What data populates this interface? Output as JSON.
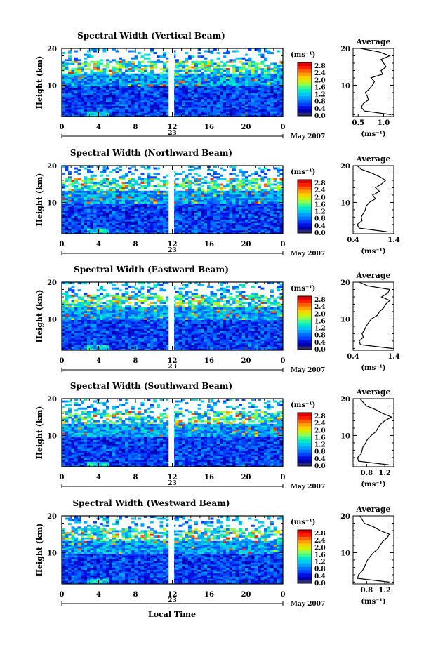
{
  "chart_data": {
    "type": "heatmap",
    "xlabel": "Local Time",
    "date_label": "May 2007",
    "x_ticks": [
      "0",
      "4",
      "8",
      "12",
      "16",
      "20",
      "0"
    ],
    "x_range_hours": [
      0,
      24
    ],
    "day_label": "23",
    "y_ticks": [
      "20",
      "10"
    ],
    "ylabel": "Height (km)",
    "ylim_km": [
      1.5,
      20
    ],
    "data_gap_hours": [
      11.6,
      12.2
    ],
    "colorbar": {
      "unit": "(ms⁻¹)",
      "ticks": [
        "2.8",
        "2.4",
        "2.0",
        "1.6",
        "1.2",
        "0.8",
        "0.4",
        "0.0"
      ],
      "range": [
        0.0,
        3.0
      ],
      "colors": [
        "#2a2a6e",
        "#0000a8",
        "#0010e0",
        "#0040ff",
        "#0070ff",
        "#00a0ff",
        "#00c8f0",
        "#00e8c8",
        "#40f890",
        "#90ff50",
        "#d0f000",
        "#ffd000",
        "#ffa000",
        "#ff6000",
        "#ff2000",
        "#e00000"
      ]
    },
    "profile_panel": {
      "title": "Average",
      "xlabel": "(ms⁻¹)"
    },
    "panels": [
      {
        "title": "Spectral Width (Vertical Beam)",
        "profile": {
          "xlim": [
            0.4,
            1.2
          ],
          "xticks": [
            "0.5",
            "1.0"
          ],
          "xtick_values": [
            0.5,
            1.0
          ],
          "heights": [
            2,
            3,
            4,
            5,
            6,
            7,
            8,
            9,
            10,
            11,
            12,
            13,
            14,
            15,
            16,
            17,
            18,
            19,
            20
          ],
          "values": [
            1.15,
            0.62,
            0.56,
            0.6,
            0.7,
            0.68,
            0.64,
            0.72,
            0.78,
            0.82,
            0.75,
            0.98,
            0.95,
            1.05,
            1.0,
            0.95,
            1.12,
            0.92,
            0.55
          ]
        }
      },
      {
        "title": "Spectral Width (Northward Beam)",
        "profile": {
          "xlim": [
            0.4,
            1.4
          ],
          "xticks": [
            "0.4",
            "1.4"
          ],
          "xtick_values": [
            0.4,
            1.4
          ],
          "heights": [
            2,
            3,
            4,
            5,
            6,
            7,
            8,
            9,
            10,
            11,
            12,
            13,
            14,
            15,
            16,
            17,
            18,
            19,
            20
          ],
          "values": [
            1.25,
            0.55,
            0.5,
            0.62,
            0.6,
            0.65,
            0.7,
            0.72,
            0.8,
            0.95,
            0.88,
            1.05,
            0.95,
            1.1,
            1.2,
            1.05,
            0.85,
            0.6,
            0.5
          ]
        }
      },
      {
        "title": "Spectral Width (Eastward Beam)",
        "profile": {
          "xlim": [
            0.4,
            1.4
          ],
          "xticks": [
            "0.4",
            "1.4"
          ],
          "xtick_values": [
            0.4,
            1.4
          ],
          "heights": [
            2,
            3,
            4,
            5,
            6,
            7,
            8,
            9,
            10,
            11,
            12,
            13,
            14,
            15,
            16,
            17,
            18,
            19,
            20
          ],
          "values": [
            1.35,
            0.58,
            0.55,
            0.65,
            0.62,
            0.68,
            0.72,
            0.78,
            0.85,
            1.0,
            1.05,
            1.15,
            1.2,
            1.3,
            1.1,
            1.25,
            1.3,
            0.75,
            0.55
          ]
        }
      },
      {
        "title": "Spectral Width (Southward Beam)",
        "profile": {
          "xlim": [
            0.5,
            1.4
          ],
          "xticks": [
            "0.8",
            "1.2"
          ],
          "xtick_values": [
            0.8,
            1.2
          ],
          "heights": [
            2,
            3,
            4,
            5,
            6,
            7,
            8,
            9,
            10,
            11,
            12,
            13,
            14,
            15,
            16,
            17,
            18,
            19,
            20
          ],
          "values": [
            1.3,
            0.62,
            0.6,
            0.68,
            0.7,
            0.72,
            0.78,
            0.82,
            0.9,
            1.0,
            1.05,
            1.1,
            1.2,
            1.35,
            1.15,
            1.0,
            0.8,
            0.72,
            0.65
          ]
        }
      },
      {
        "title": "Spectral Width (Westward Beam)",
        "profile": {
          "xlim": [
            0.5,
            1.4
          ],
          "xticks": [
            "0.8",
            "1.2"
          ],
          "xtick_values": [
            0.8,
            1.2
          ],
          "heights": [
            2,
            3,
            4,
            5,
            6,
            7,
            8,
            9,
            10,
            11,
            12,
            13,
            14,
            15,
            16,
            17,
            18,
            19,
            20
          ],
          "values": [
            1.3,
            0.6,
            0.62,
            0.7,
            0.75,
            0.78,
            0.82,
            0.88,
            0.95,
            1.05,
            1.1,
            1.15,
            1.25,
            1.3,
            1.1,
            0.95,
            0.75,
            0.7,
            0.65
          ]
        }
      }
    ]
  }
}
